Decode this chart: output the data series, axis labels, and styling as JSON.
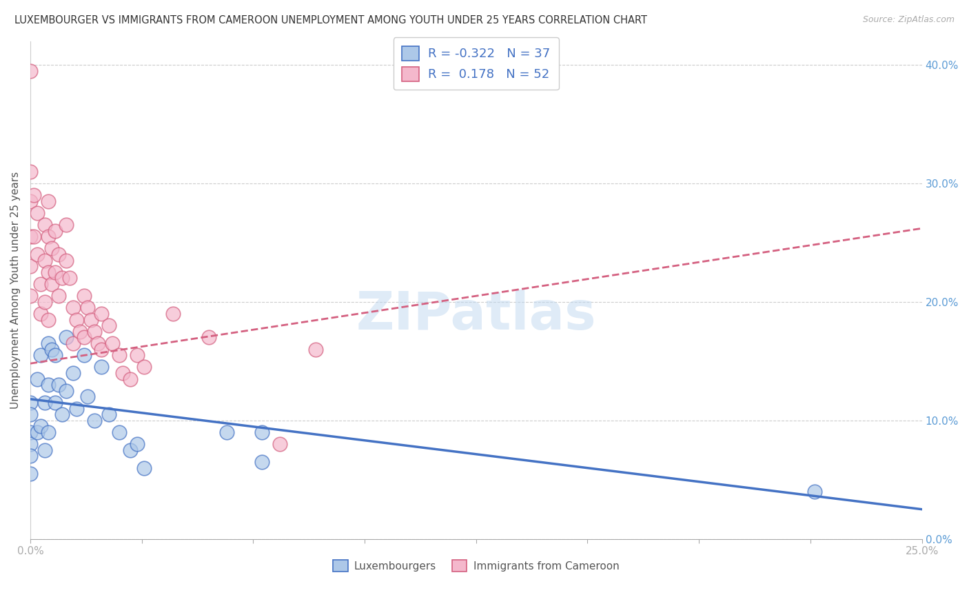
{
  "title": "LUXEMBOURGER VS IMMIGRANTS FROM CAMEROON UNEMPLOYMENT AMONG YOUTH UNDER 25 YEARS CORRELATION CHART",
  "source": "Source: ZipAtlas.com",
  "ylabel": "Unemployment Among Youth under 25 years",
  "xlim": [
    0.0,
    0.25
  ],
  "ylim": [
    0.0,
    0.42
  ],
  "xticks": [
    0.0,
    0.03125,
    0.0625,
    0.09375,
    0.125,
    0.15625,
    0.1875,
    0.21875,
    0.25
  ],
  "xticklabels_show": {
    "0.0": "0.0%",
    "0.25": "25.0%"
  },
  "yticks_right": [
    0.0,
    0.1,
    0.2,
    0.3,
    0.4
  ],
  "yticklabels_right": [
    "0.0%",
    "10.0%",
    "20.0%",
    "30.0%",
    "40.0%"
  ],
  "legend_lux": {
    "R": -0.322,
    "N": 37,
    "color": "#adc8e8",
    "line_color": "#4472c4"
  },
  "legend_cam": {
    "R": 0.178,
    "N": 52,
    "color": "#f4b8cc",
    "line_color": "#d46080"
  },
  "watermark": "ZIPatlas",
  "blue_line_x0": 0.0,
  "blue_line_y0": 0.118,
  "blue_line_x1": 0.25,
  "blue_line_y1": 0.025,
  "pink_line_x0": 0.0,
  "pink_line_y0": 0.148,
  "pink_line_x1": 0.25,
  "pink_line_y1": 0.262,
  "blue_scatter_x": [
    0.0,
    0.0,
    0.0,
    0.0,
    0.0,
    0.0,
    0.002,
    0.002,
    0.003,
    0.003,
    0.004,
    0.004,
    0.005,
    0.005,
    0.005,
    0.006,
    0.007,
    0.007,
    0.008,
    0.009,
    0.01,
    0.01,
    0.012,
    0.013,
    0.015,
    0.016,
    0.018,
    0.02,
    0.022,
    0.025,
    0.028,
    0.03,
    0.032,
    0.055,
    0.065,
    0.065,
    0.22
  ],
  "blue_scatter_y": [
    0.115,
    0.105,
    0.09,
    0.08,
    0.07,
    0.055,
    0.135,
    0.09,
    0.155,
    0.095,
    0.115,
    0.075,
    0.165,
    0.13,
    0.09,
    0.16,
    0.155,
    0.115,
    0.13,
    0.105,
    0.17,
    0.125,
    0.14,
    0.11,
    0.155,
    0.12,
    0.1,
    0.145,
    0.105,
    0.09,
    0.075,
    0.08,
    0.06,
    0.09,
    0.09,
    0.065,
    0.04
  ],
  "pink_scatter_x": [
    0.0,
    0.0,
    0.0,
    0.0,
    0.0,
    0.0,
    0.001,
    0.001,
    0.002,
    0.002,
    0.003,
    0.003,
    0.004,
    0.004,
    0.004,
    0.005,
    0.005,
    0.005,
    0.005,
    0.006,
    0.006,
    0.007,
    0.007,
    0.008,
    0.008,
    0.009,
    0.01,
    0.01,
    0.011,
    0.012,
    0.012,
    0.013,
    0.014,
    0.015,
    0.015,
    0.016,
    0.017,
    0.018,
    0.019,
    0.02,
    0.02,
    0.022,
    0.023,
    0.025,
    0.026,
    0.028,
    0.03,
    0.032,
    0.04,
    0.05,
    0.07,
    0.08
  ],
  "pink_scatter_y": [
    0.395,
    0.31,
    0.285,
    0.255,
    0.23,
    0.205,
    0.29,
    0.255,
    0.275,
    0.24,
    0.215,
    0.19,
    0.265,
    0.235,
    0.2,
    0.285,
    0.255,
    0.225,
    0.185,
    0.245,
    0.215,
    0.26,
    0.225,
    0.24,
    0.205,
    0.22,
    0.265,
    0.235,
    0.22,
    0.195,
    0.165,
    0.185,
    0.175,
    0.205,
    0.17,
    0.195,
    0.185,
    0.175,
    0.165,
    0.19,
    0.16,
    0.18,
    0.165,
    0.155,
    0.14,
    0.135,
    0.155,
    0.145,
    0.19,
    0.17,
    0.08,
    0.16
  ]
}
